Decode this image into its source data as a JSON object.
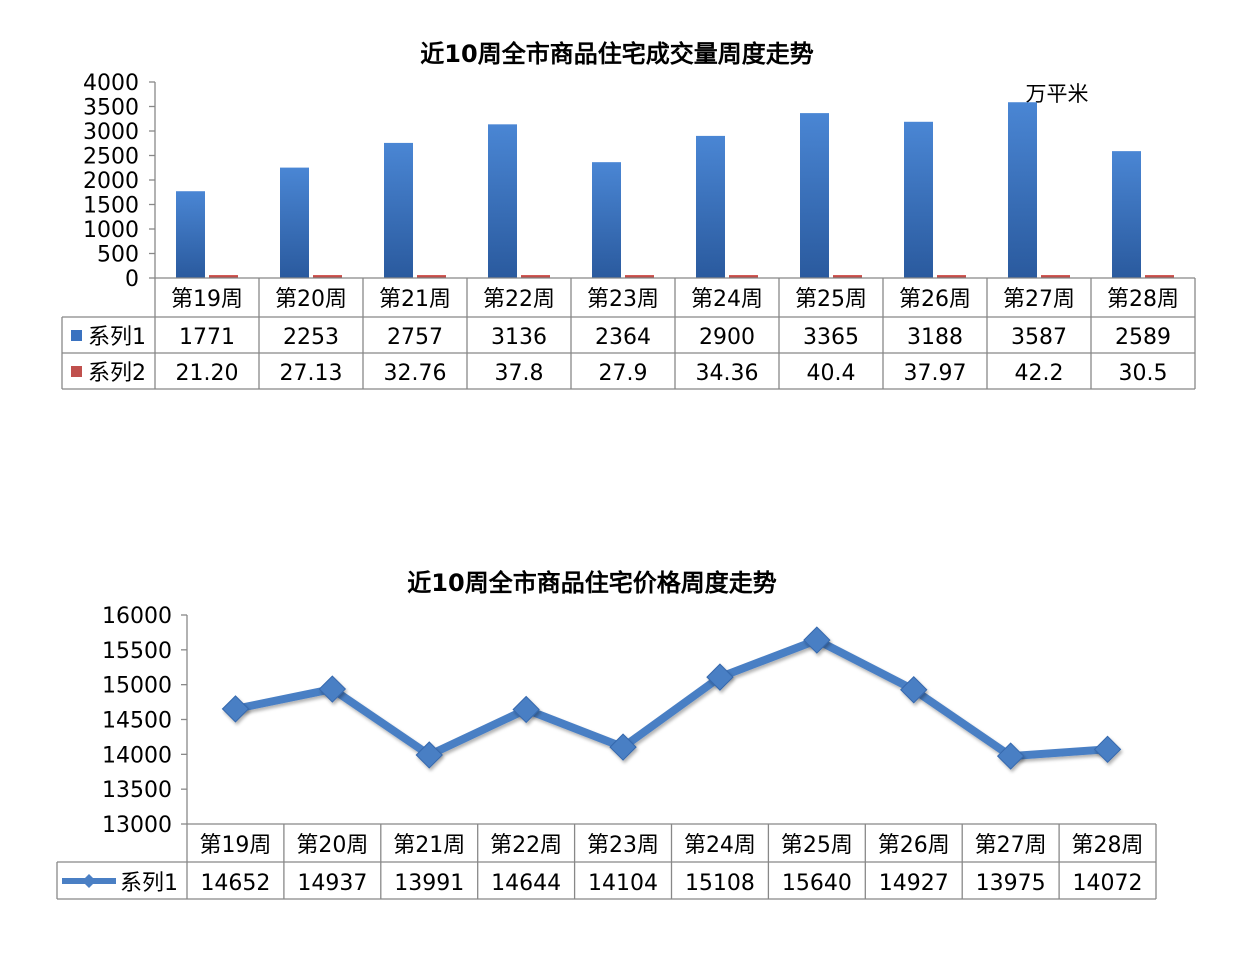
{
  "chart_data": [
    {
      "type": "bar",
      "title": "近10周全市商品住宅成交量周度走势",
      "unit_label": "万平米",
      "categories": [
        "第19周",
        "第20周",
        "第21周",
        "第22周",
        "第23周",
        "第24周",
        "第25周",
        "第26周",
        "第27周",
        "第28周"
      ],
      "series": [
        {
          "name": "系列1",
          "color": "#3a72c0",
          "values": [
            1771,
            2253,
            2757,
            3136,
            2364,
            2900,
            3365,
            3188,
            3587,
            2589
          ],
          "labels": [
            "1771",
            "2253",
            "2757",
            "3136",
            "2364",
            "2900",
            "3365",
            "3188",
            "3587",
            "2589"
          ]
        },
        {
          "name": "系列2",
          "color": "#c0504d",
          "values": [
            21.2,
            27.13,
            32.76,
            37.8,
            27.9,
            34.36,
            40.4,
            37.97,
            42.2,
            30.5
          ],
          "labels": [
            "21.20",
            "27.13",
            "32.76",
            "37.8",
            "27.9",
            "34.36",
            "40.4",
            "37.97",
            "42.2",
            "30.5"
          ]
        }
      ],
      "ylim": [
        0,
        4000
      ],
      "yticks": [
        0,
        500,
        1000,
        1500,
        2000,
        2500,
        3000,
        3500,
        4000
      ],
      "grid": false,
      "legend": "data-table"
    },
    {
      "type": "line",
      "title": "近10周全市商品住宅价格周度走势",
      "categories": [
        "第19周",
        "第20周",
        "第21周",
        "第22周",
        "第23周",
        "第24周",
        "第25周",
        "第26周",
        "第27周",
        "第28周"
      ],
      "series": [
        {
          "name": "系列1",
          "color": "#4a7fc4",
          "values": [
            14652,
            14937,
            13991,
            14644,
            14104,
            15108,
            15640,
            14927,
            13975,
            14072
          ],
          "labels": [
            "14652",
            "14937",
            "13991",
            "14644",
            "14104",
            "15108",
            "15640",
            "14927",
            "13975",
            "14072"
          ]
        }
      ],
      "ylim": [
        13000,
        16000
      ],
      "yticks": [
        13000,
        13500,
        14000,
        14500,
        15000,
        15500,
        16000
      ],
      "grid": false,
      "legend": "data-table"
    }
  ]
}
